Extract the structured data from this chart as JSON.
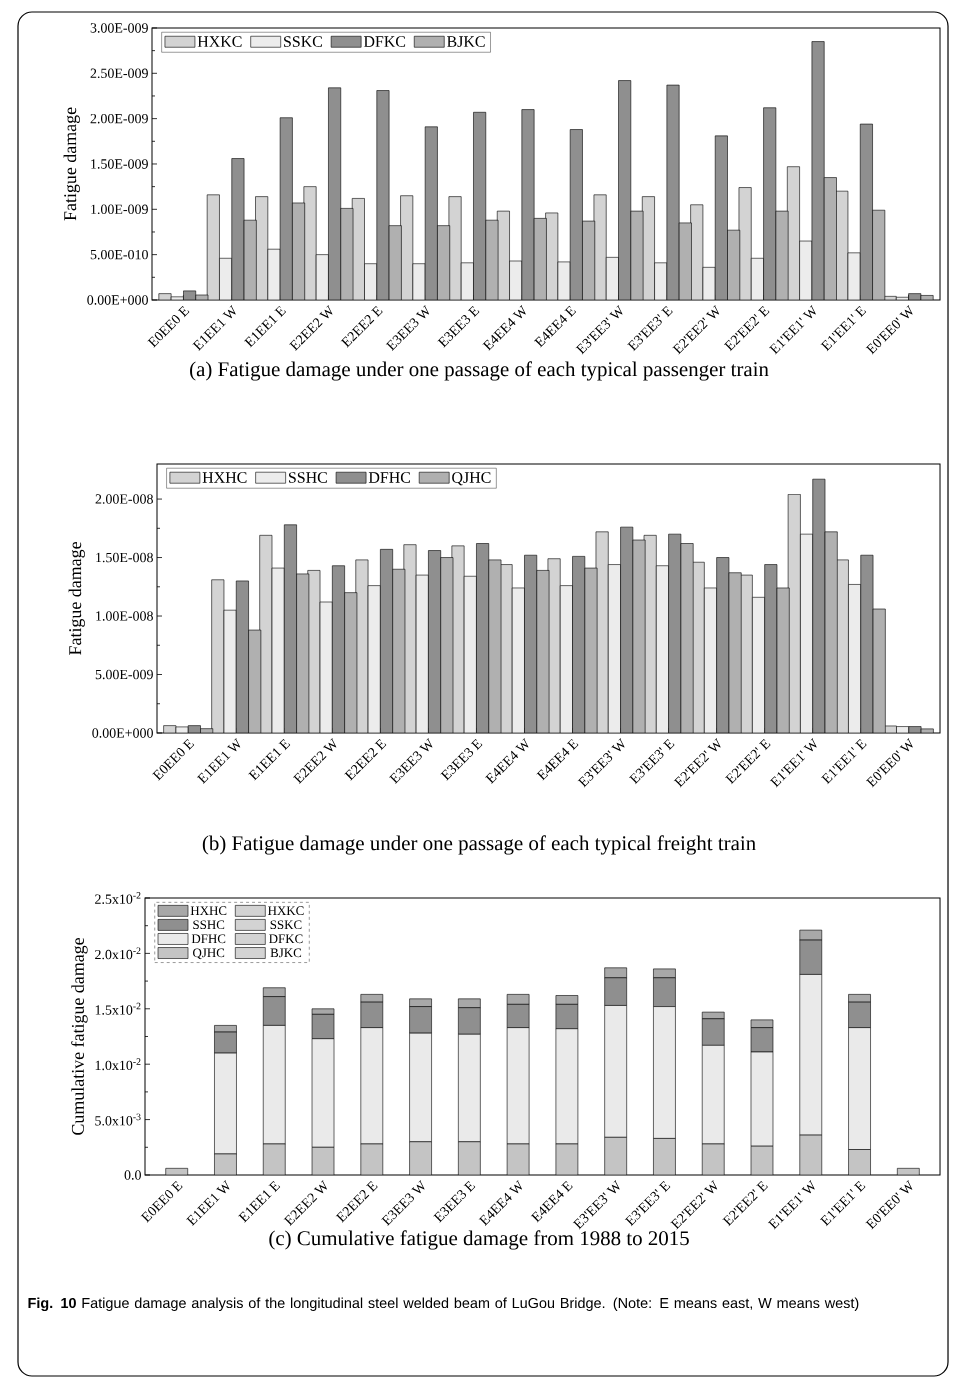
{
  "chart_data": [
    {
      "type": "bar",
      "title": "(a)  Fatigue damage under one passage of each typical passenger train",
      "ylabel": "Fatigue damage",
      "categories": [
        "E0EE0 E",
        "E1EE1 W",
        "E1EE1 E",
        "E2EE2 W",
        "E2EE2 E",
        "E3EE3 W",
        "E3EE3 E",
        "E4EE4 W",
        "E4EE4 E",
        "E3'EE3' W",
        "E3'EE3' E",
        "E2'EE2' W",
        "E2'EE2' E",
        "E1'EE1' W",
        "E1'EE1' E",
        "E0'EE0' W"
      ],
      "series": [
        {
          "name": "HXKC",
          "color": "#d3d3d3",
          "values": [
            7e-11,
            1.16e-09,
            1.14e-09,
            1.25e-09,
            1.12e-09,
            1.15e-09,
            1.14e-09,
            9.8e-10,
            9.6e-10,
            1.16e-09,
            1.14e-09,
            1.05e-09,
            1.24e-09,
            1.47e-09,
            1.2e-09,
            4e-11
          ]
        },
        {
          "name": "SSKC",
          "color": "#ececec",
          "values": [
            3.5e-11,
            4.6e-10,
            5.6e-10,
            5e-10,
            4e-10,
            4e-10,
            4.1e-10,
            4.3e-10,
            4.2e-10,
            4.7e-10,
            4.1e-10,
            3.6e-10,
            4.6e-10,
            6.5e-10,
            5.2e-10,
            3e-11
          ]
        },
        {
          "name": "DFKC",
          "color": "#8f8f8f",
          "values": [
            1e-10,
            1.56e-09,
            2.01e-09,
            2.34e-09,
            2.31e-09,
            1.91e-09,
            2.07e-09,
            2.1e-09,
            1.88e-09,
            2.42e-09,
            2.37e-09,
            1.81e-09,
            2.12e-09,
            2.85e-09,
            1.94e-09,
            7e-11
          ]
        },
        {
          "name": "BJKC",
          "color": "#b0b0b0",
          "values": [
            5.5e-11,
            8.8e-10,
            1.07e-09,
            1.01e-09,
            8.2e-10,
            8.2e-10,
            8.8e-10,
            9e-10,
            8.7e-10,
            9.8e-10,
            8.5e-10,
            7.7e-10,
            9.8e-10,
            1.35e-09,
            9.9e-10,
            5e-11
          ]
        }
      ],
      "ylim": [
        0,
        3e-09
      ],
      "yticks": [
        {
          "value": 0,
          "label": "0.00E+000"
        },
        {
          "value": 5e-10,
          "label": "5.00E-010"
        },
        {
          "value": 1e-09,
          "label": "1.00E-009"
        },
        {
          "value": 1.5e-09,
          "label": "1.50E-009"
        },
        {
          "value": 2e-09,
          "label": "2.00E-009"
        },
        {
          "value": 2.5e-09,
          "label": "2.50E-009"
        },
        {
          "value": 3e-09,
          "label": "3.00E-009"
        }
      ],
      "legend": "top left"
    },
    {
      "type": "bar",
      "title": "(b)  Fatigue damage under one passage of each typical freight train",
      "ylabel": "Fatigue damage",
      "categories": [
        "E0EE0 E",
        "E1EE1 W",
        "E1EE1 E",
        "E2EE2 W",
        "E2EE2 E",
        "E3EE3 W",
        "E3EE3 E",
        "E4EE4 W",
        "E4EE4 E",
        "E3'EE3' W",
        "E3'EE3' E",
        "E2'EE2' W",
        "E2'EE2' E",
        "E1'EE1' W",
        "E1'EE1' E",
        "E0'EE0' W"
      ],
      "series": [
        {
          "name": "HXHC",
          "color": "#d3d3d3",
          "values": [
            6.3e-10,
            1.31e-08,
            1.69e-08,
            1.39e-08,
            1.48e-08,
            1.61e-08,
            1.6e-08,
            1.44e-08,
            1.49e-08,
            1.72e-08,
            1.69e-08,
            1.46e-08,
            1.35e-08,
            2.04e-08,
            1.48e-08,
            6e-10
          ]
        },
        {
          "name": "SSHC",
          "color": "#ececec",
          "values": [
            5.2e-10,
            1.05e-08,
            1.41e-08,
            1.12e-08,
            1.26e-08,
            1.35e-08,
            1.34e-08,
            1.24e-08,
            1.26e-08,
            1.44e-08,
            1.43e-08,
            1.24e-08,
            1.16e-08,
            1.7e-08,
            1.27e-08,
            5.5e-10
          ]
        },
        {
          "name": "DFHC",
          "color": "#8f8f8f",
          "values": [
            6.3e-10,
            1.3e-08,
            1.78e-08,
            1.43e-08,
            1.57e-08,
            1.56e-08,
            1.62e-08,
            1.52e-08,
            1.51e-08,
            1.76e-08,
            1.7e-08,
            1.5e-08,
            1.44e-08,
            2.17e-08,
            1.52e-08,
            5.5e-10
          ]
        },
        {
          "name": "QJHC",
          "color": "#b0b0b0",
          "values": [
            3.7e-10,
            8.8e-09,
            1.36e-08,
            1.2e-08,
            1.4e-08,
            1.5e-08,
            1.48e-08,
            1.39e-08,
            1.41e-08,
            1.65e-08,
            1.62e-08,
            1.37e-08,
            1.24e-08,
            1.72e-08,
            1.06e-08,
            3.5e-10
          ]
        }
      ],
      "ylim": [
        0,
        2.3e-08
      ],
      "yticks": [
        {
          "value": 0,
          "label": "0.00E+000"
        },
        {
          "value": 5e-09,
          "label": "5.00E-009"
        },
        {
          "value": 1e-08,
          "label": "1.00E-008"
        },
        {
          "value": 1.5e-08,
          "label": "1.50E-008"
        },
        {
          "value": 2e-08,
          "label": "2.00E-008"
        }
      ],
      "legend": "top left"
    },
    {
      "type": "bar",
      "stacked": true,
      "title": "(c)  Cumulative fatigue damage from 1988 to 2015",
      "ylabel": "Cumulative fatigue damage",
      "categories": [
        "E0EE0 E",
        "E1EE1 W",
        "E1EE1 E",
        "E2EE2 W",
        "E2EE2 E",
        "E3EE3 W",
        "E3EE3 E",
        "E4EE4 W",
        "E4EE4 E",
        "E3'EE3' W",
        "E3'EE3' E",
        "E2'EE2' W",
        "E2'EE2' E",
        "E1'EE1' W",
        "E1'EE1' E",
        "E0'EE0' W"
      ],
      "series": [
        {
          "name": "QJHC",
          "color": "#c4c4c4",
          "values": [
            0.0006,
            0.0019,
            0.0028,
            0.0025,
            0.0028,
            0.003,
            0.003,
            0.0028,
            0.0028,
            0.0034,
            0.0033,
            0.0028,
            0.0026,
            0.0036,
            0.0023,
            0.0006
          ]
        },
        {
          "name": "DFHC",
          "color": "#eaeaea",
          "values": [
            0,
            0.0091,
            0.0107,
            0.0098,
            0.0105,
            0.0098,
            0.0097,
            0.0105,
            0.0104,
            0.0119,
            0.0119,
            0.0089,
            0.0085,
            0.0145,
            0.011,
            0
          ]
        },
        {
          "name": "SSHC",
          "color": "#8f8f8f",
          "values": [
            0,
            0.0019,
            0.0026,
            0.0022,
            0.0023,
            0.0024,
            0.0024,
            0.0021,
            0.0022,
            0.0025,
            0.0026,
            0.0024,
            0.0022,
            0.0031,
            0.0023,
            0
          ]
        },
        {
          "name": "HXHC",
          "color": "#a8a8a8",
          "values": [
            0,
            0.0006,
            0.0008,
            0.0005,
            0.0007,
            0.0007,
            0.0008,
            0.0009,
            0.0008,
            0.0009,
            0.0008,
            0.0006,
            0.0007,
            0.0009,
            0.0007,
            0
          ]
        },
        {
          "name": "HXKC",
          "color": "#d3d3d3",
          "values": [
            null,
            null,
            null,
            null,
            null,
            null,
            null,
            null,
            null,
            null,
            null,
            null,
            null,
            null,
            null,
            null
          ]
        },
        {
          "name": "SSKC",
          "color": "#d3d3d3",
          "values": [
            null,
            null,
            null,
            null,
            null,
            null,
            null,
            null,
            null,
            null,
            null,
            null,
            null,
            null,
            null,
            null
          ]
        },
        {
          "name": "DFKC",
          "color": "#d3d3d3",
          "values": [
            null,
            null,
            null,
            null,
            null,
            null,
            null,
            null,
            null,
            null,
            null,
            null,
            null,
            null,
            null,
            null
          ]
        },
        {
          "name": "BJKC",
          "color": "#d3d3d3",
          "values": [
            null,
            null,
            null,
            null,
            null,
            null,
            null,
            null,
            null,
            null,
            null,
            null,
            null,
            null,
            null,
            null
          ]
        }
      ],
      "ylim": [
        0,
        0.025
      ],
      "yticks": [
        {
          "value": 0,
          "label": "0.0"
        },
        {
          "value": 0.005,
          "label": "5.0x10$^{-3}$"
        },
        {
          "value": 0.01,
          "label": "1.0x10$^{-2}$"
        },
        {
          "value": 0.015,
          "label": "1.5x10$^{-2}$"
        },
        {
          "value": 0.02,
          "label": "2.0x10$^{-2}$"
        },
        {
          "value": 0.025,
          "label": "2.5x10$^{-2}$"
        }
      ],
      "legend": "top left",
      "annotations": [
        "**Fig. 10** Fatigue damage analysis of the longitudinal steel welded beam of LuGou Bridge. (Note: E means east, W means west)"
      ]
    }
  ]
}
